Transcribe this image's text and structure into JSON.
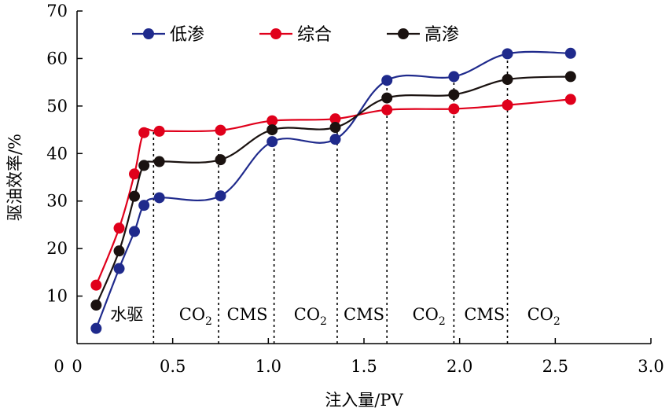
{
  "chart_data": {
    "type": "line",
    "xlabel": "注入量/PV",
    "ylabel": "驱油效率/%",
    "xlim": [
      0,
      3.0
    ],
    "ylim": [
      0,
      70
    ],
    "xticks": [
      "0",
      "0.5",
      "1.0",
      "1.5",
      "2.0",
      "2.5",
      "3.0"
    ],
    "yticks": [
      "0",
      "10",
      "20",
      "30",
      "40",
      "50",
      "60",
      "70"
    ],
    "xtick_values": [
      0,
      0.5,
      1.0,
      1.5,
      2.0,
      2.5,
      3.0
    ],
    "ytick_values": [
      0,
      10,
      20,
      30,
      40,
      50,
      60,
      70
    ],
    "grid": false,
    "legend_position": "top",
    "series": [
      {
        "name": "低渗",
        "color": "#1f2a8c",
        "x": [
          0.1,
          0.22,
          0.3,
          0.35,
          0.43,
          0.75,
          1.02,
          1.35,
          1.62,
          1.97,
          2.25,
          2.58
        ],
        "y": [
          3.2,
          15.8,
          23.6,
          29.1,
          30.7,
          31.1,
          42.5,
          43.0,
          55.4,
          56.2,
          61.0,
          61.1
        ]
      },
      {
        "name": "综合",
        "color": "#e0001b",
        "x": [
          0.1,
          0.22,
          0.3,
          0.35,
          0.43,
          0.75,
          1.02,
          1.35,
          1.62,
          1.97,
          2.25,
          2.58
        ],
        "y": [
          12.3,
          24.3,
          35.7,
          44.4,
          44.7,
          44.9,
          46.9,
          47.3,
          49.2,
          49.4,
          50.2,
          51.4
        ]
      },
      {
        "name": "高渗",
        "color": "#1a1210",
        "x": [
          0.1,
          0.22,
          0.3,
          0.35,
          0.43,
          0.75,
          1.02,
          1.35,
          1.62,
          1.97,
          2.25,
          2.58
        ],
        "y": [
          8.1,
          19.5,
          31.0,
          37.5,
          38.3,
          38.7,
          45.0,
          45.5,
          51.7,
          52.4,
          55.6,
          56.2
        ]
      }
    ],
    "stage_boundaries": [
      0.4,
      0.74,
      1.03,
      1.36,
      1.62,
      1.97,
      2.25
    ],
    "stages": [
      {
        "label": "水驱",
        "sub": "",
        "x": 0.26
      },
      {
        "label": "CO",
        "sub": "2",
        "x": 0.62
      },
      {
        "label": "CMS",
        "sub": "",
        "x": 0.89
      },
      {
        "label": "CO",
        "sub": "2",
        "x": 1.22
      },
      {
        "label": "CMS",
        "sub": "",
        "x": 1.5
      },
      {
        "label": "CO",
        "sub": "2",
        "x": 1.84
      },
      {
        "label": "CMS",
        "sub": "",
        "x": 2.13
      },
      {
        "label": "CO",
        "sub": "2",
        "x": 2.44
      }
    ],
    "stage_label_y": 5.0
  }
}
